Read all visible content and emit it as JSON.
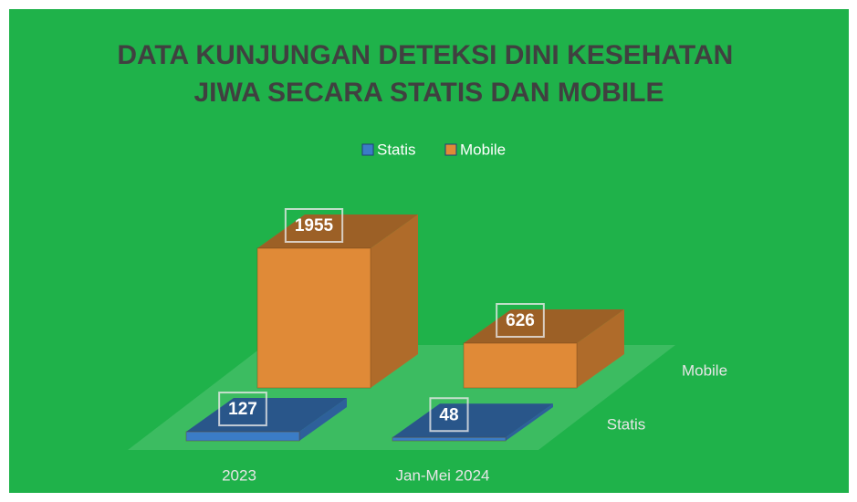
{
  "chart_data": {
    "type": "bar3d",
    "title": "DATA KUNJUNGAN DETEKSI DINI KESEHATAN JIWA SECARA STATIS DAN MOBILE",
    "categories": [
      "2023",
      "Jan-Mei 2024"
    ],
    "series": [
      {
        "name": "Statis",
        "color": "#3b7cc6",
        "values": [
          127,
          48
        ]
      },
      {
        "name": "Mobile",
        "color": "#e08a37",
        "values": [
          1955,
          626
        ]
      }
    ],
    "legend": "top"
  }
}
